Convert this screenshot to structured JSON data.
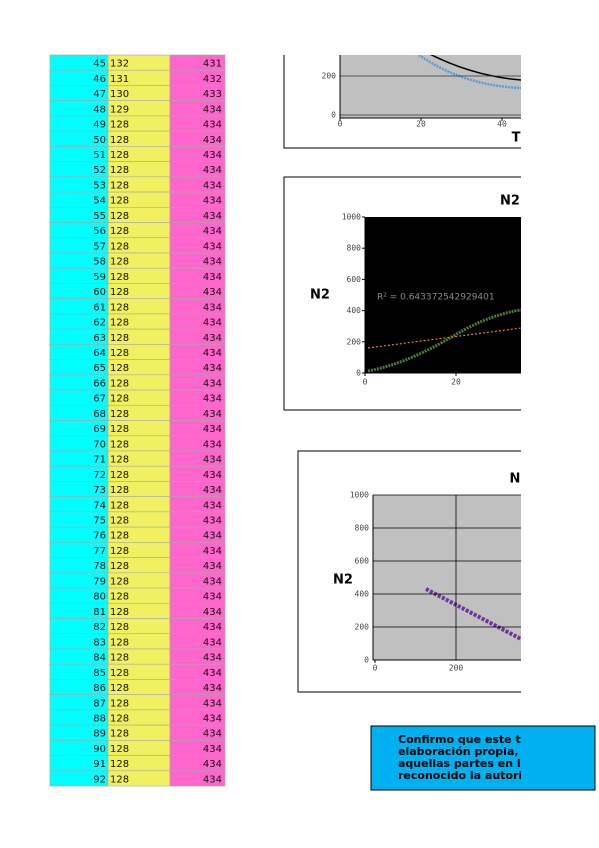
{
  "table": {
    "rows": [
      [
        45,
        132,
        431
      ],
      [
        46,
        131,
        432
      ],
      [
        47,
        130,
        433
      ],
      [
        48,
        129,
        434
      ],
      [
        49,
        128,
        434
      ],
      [
        50,
        128,
        434
      ],
      [
        51,
        128,
        434
      ],
      [
        52,
        128,
        434
      ],
      [
        53,
        128,
        434
      ],
      [
        54,
        128,
        434
      ],
      [
        55,
        128,
        434
      ],
      [
        56,
        128,
        434
      ],
      [
        57,
        128,
        434
      ],
      [
        58,
        128,
        434
      ],
      [
        59,
        128,
        434
      ],
      [
        60,
        128,
        434
      ],
      [
        61,
        128,
        434
      ],
      [
        62,
        128,
        434
      ],
      [
        63,
        128,
        434
      ],
      [
        64,
        128,
        434
      ],
      [
        65,
        128,
        434
      ],
      [
        66,
        128,
        434
      ],
      [
        67,
        128,
        434
      ],
      [
        68,
        128,
        434
      ],
      [
        69,
        128,
        434
      ],
      [
        70,
        128,
        434
      ],
      [
        71,
        128,
        434
      ],
      [
        72,
        128,
        434
      ],
      [
        73,
        128,
        434
      ],
      [
        74,
        128,
        434
      ],
      [
        75,
        128,
        434
      ],
      [
        76,
        128,
        434
      ],
      [
        77,
        128,
        434
      ],
      [
        78,
        128,
        434
      ],
      [
        79,
        128,
        434
      ],
      [
        80,
        128,
        434
      ],
      [
        81,
        128,
        434
      ],
      [
        82,
        128,
        434
      ],
      [
        83,
        128,
        434
      ],
      [
        84,
        128,
        434
      ],
      [
        85,
        128,
        434
      ],
      [
        86,
        128,
        434
      ],
      [
        87,
        128,
        434
      ],
      [
        88,
        128,
        434
      ],
      [
        89,
        128,
        434
      ],
      [
        90,
        128,
        434
      ],
      [
        91,
        128,
        434
      ],
      [
        92,
        128,
        434
      ]
    ]
  },
  "charts": [
    {
      "x_label": "T",
      "yticks": [
        0,
        200
      ],
      "xticks": [
        0,
        20,
        40
      ]
    },
    {
      "title": "N2",
      "y_label": "N2",
      "annotation": "R² = 0.643372542929401",
      "yticks": [
        0,
        200,
        400,
        600,
        800,
        1000
      ],
      "xticks": [
        0,
        20
      ]
    },
    {
      "title": "N",
      "y_label": "N2",
      "yticks": [
        0,
        200,
        400,
        600,
        800,
        1000
      ],
      "xticks": [
        0,
        200
      ]
    }
  ],
  "note": {
    "lines": [
      "Confirmo que este t",
      "elaboración propia,",
      "aquellas partes en l",
      "reconocido la autori"
    ]
  }
}
